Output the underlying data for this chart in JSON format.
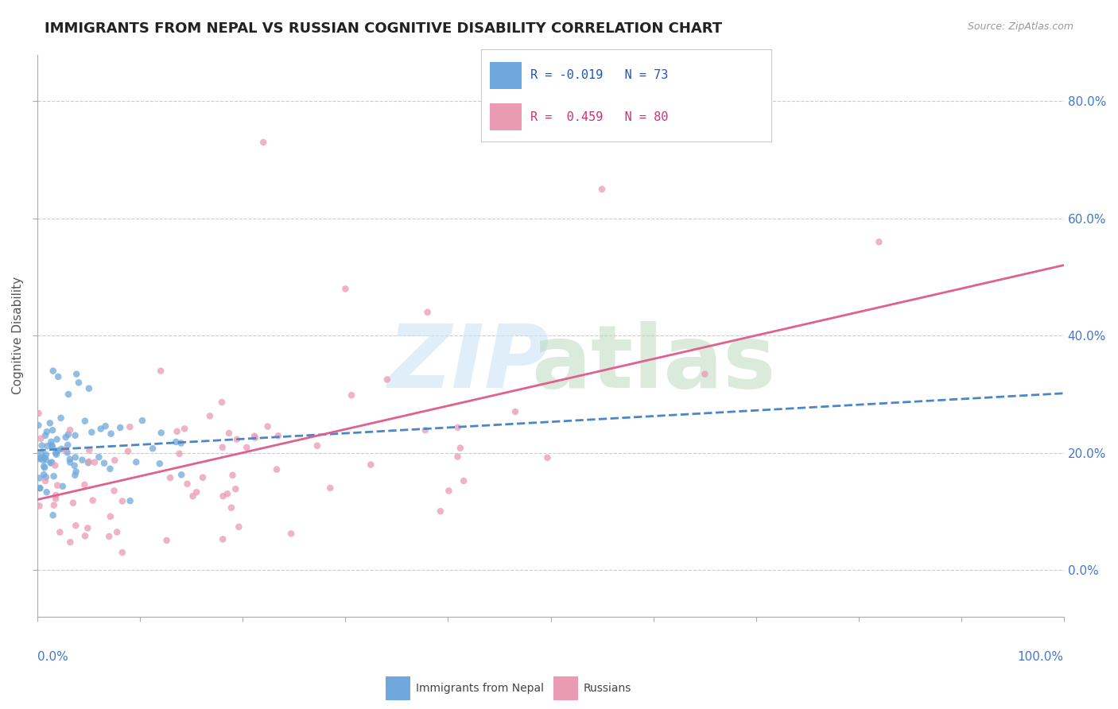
{
  "title": "IMMIGRANTS FROM NEPAL VS RUSSIAN COGNITIVE DISABILITY CORRELATION CHART",
  "source": "Source: ZipAtlas.com",
  "ylabel": "Cognitive Disability",
  "legend_label1": "Immigrants from Nepal",
  "legend_label2": "Russians",
  "r1": -0.019,
  "n1": 73,
  "r2": 0.459,
  "n2": 80,
  "color_blue": "#6fa8dc",
  "color_pink": "#ea9ab2",
  "color_blue_line": "#4a86c8",
  "color_pink_line": "#e06090",
  "background": "#ffffff",
  "xmin": 0.0,
  "xmax": 100.0,
  "ymin": -8.0,
  "ymax": 88.0,
  "yticks": [
    0.0,
    20.0,
    40.0,
    60.0,
    80.0
  ],
  "ytick_labels": [
    "0.0%",
    "20.0%",
    "40.0%",
    "60.0%",
    "80.0%"
  ]
}
